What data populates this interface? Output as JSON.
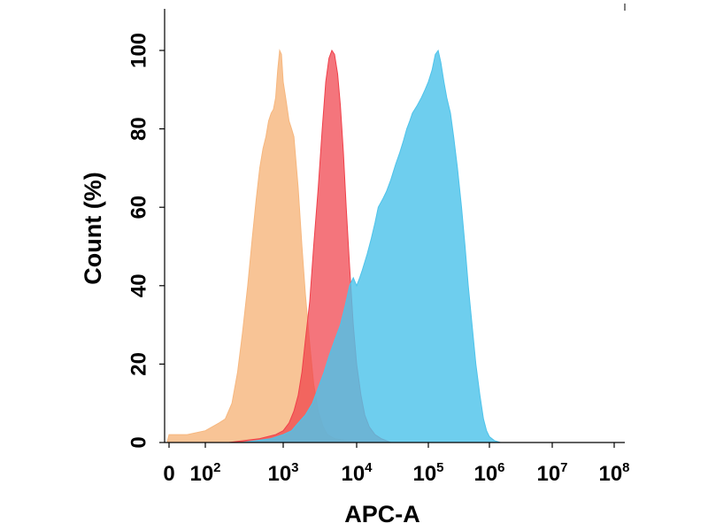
{
  "chart_data": {
    "type": "area",
    "title": "",
    "xlabel": "APC-A",
    "ylabel": "Count  (%)",
    "x_scale": "biexponential",
    "xlim": [
      -100,
      100000000
    ],
    "ylim": [
      0,
      108
    ],
    "x_ticks": [
      {
        "value": 0,
        "base": "0",
        "exp": ""
      },
      {
        "value": 100,
        "base": "10",
        "exp": "2"
      },
      {
        "value": 1000,
        "base": "10",
        "exp": "3"
      },
      {
        "value": 10000,
        "base": "10",
        "exp": "4"
      },
      {
        "value": 100000,
        "base": "10",
        "exp": "5"
      },
      {
        "value": 1000000,
        "base": "10",
        "exp": "6"
      },
      {
        "value": 10000000,
        "base": "10",
        "exp": "7"
      },
      {
        "value": 100000000,
        "base": "10",
        "exp": "8"
      }
    ],
    "y_ticks": [
      "0",
      "20",
      "40",
      "60",
      "80",
      "100"
    ],
    "y_tick_values": [
      0,
      20,
      40,
      60,
      80,
      100
    ],
    "grid": false,
    "legend": "none",
    "series": [
      {
        "color": "#f6b77f",
        "points": [
          [
            -100,
            0
          ],
          [
            0,
            2
          ],
          [
            50,
            2
          ],
          [
            100,
            3
          ],
          [
            150,
            5
          ],
          [
            180,
            6
          ],
          [
            220,
            10
          ],
          [
            260,
            18
          ],
          [
            300,
            28
          ],
          [
            350,
            40
          ],
          [
            400,
            52
          ],
          [
            450,
            62
          ],
          [
            500,
            70
          ],
          [
            550,
            75
          ],
          [
            600,
            78
          ],
          [
            650,
            82
          ],
          [
            700,
            84
          ],
          [
            750,
            85
          ],
          [
            800,
            88
          ],
          [
            850,
            95
          ],
          [
            900,
            100
          ],
          [
            950,
            99
          ],
          [
            1000,
            92
          ],
          [
            1100,
            87
          ],
          [
            1200,
            82
          ],
          [
            1300,
            80
          ],
          [
            1400,
            78
          ],
          [
            1600,
            65
          ],
          [
            1800,
            50
          ],
          [
            2000,
            38
          ],
          [
            2300,
            25
          ],
          [
            2600,
            15
          ],
          [
            3000,
            8
          ],
          [
            3500,
            4
          ],
          [
            4000,
            2
          ],
          [
            5000,
            1
          ],
          [
            7000,
            0.5
          ],
          [
            10000,
            0
          ]
        ]
      },
      {
        "color": "#f0404a",
        "points": [
          [
            200,
            0
          ],
          [
            500,
            1
          ],
          [
            800,
            2
          ],
          [
            1000,
            3
          ],
          [
            1200,
            5
          ],
          [
            1400,
            8
          ],
          [
            1600,
            12
          ],
          [
            1800,
            18
          ],
          [
            2000,
            26
          ],
          [
            2300,
            36
          ],
          [
            2600,
            50
          ],
          [
            3000,
            65
          ],
          [
            3400,
            80
          ],
          [
            3800,
            92
          ],
          [
            4200,
            98
          ],
          [
            4600,
            100
          ],
          [
            5000,
            99
          ],
          [
            5500,
            94
          ],
          [
            6000,
            86
          ],
          [
            6600,
            74
          ],
          [
            7200,
            60
          ],
          [
            8000,
            45
          ],
          [
            9000,
            30
          ],
          [
            10000,
            20
          ],
          [
            11500,
            12
          ],
          [
            13000,
            7
          ],
          [
            15000,
            4
          ],
          [
            18000,
            2
          ],
          [
            22000,
            1
          ],
          [
            30000,
            0
          ]
        ]
      },
      {
        "color": "#4ec3ea",
        "points": [
          [
            300,
            0
          ],
          [
            700,
            1
          ],
          [
            1000,
            2
          ],
          [
            1300,
            3
          ],
          [
            1600,
            5
          ],
          [
            2000,
            7
          ],
          [
            2500,
            10
          ],
          [
            3000,
            14
          ],
          [
            3600,
            18
          ],
          [
            4200,
            22
          ],
          [
            5000,
            26
          ],
          [
            6000,
            30
          ],
          [
            7000,
            35
          ],
          [
            8000,
            40
          ],
          [
            9000,
            42
          ],
          [
            10000,
            40
          ],
          [
            11000,
            42
          ],
          [
            12000,
            44
          ],
          [
            14000,
            48
          ],
          [
            16000,
            52
          ],
          [
            18000,
            56
          ],
          [
            20000,
            60
          ],
          [
            23000,
            62
          ],
          [
            26000,
            64
          ],
          [
            30000,
            67
          ],
          [
            35000,
            71
          ],
          [
            40000,
            74
          ],
          [
            45000,
            77
          ],
          [
            50000,
            80
          ],
          [
            55000,
            82
          ],
          [
            60000,
            84
          ],
          [
            70000,
            86
          ],
          [
            80000,
            88
          ],
          [
            90000,
            90
          ],
          [
            100000,
            92
          ],
          [
            115000,
            95
          ],
          [
            130000,
            99
          ],
          [
            145000,
            100
          ],
          [
            160000,
            97
          ],
          [
            180000,
            92
          ],
          [
            200000,
            88
          ],
          [
            230000,
            84
          ],
          [
            260000,
            78
          ],
          [
            300000,
            70
          ],
          [
            350000,
            60
          ],
          [
            400000,
            50
          ],
          [
            450000,
            40
          ],
          [
            520000,
            30
          ],
          [
            600000,
            20
          ],
          [
            700000,
            12
          ],
          [
            800000,
            6
          ],
          [
            900000,
            3
          ],
          [
            1000000,
            1.5
          ],
          [
            1200000,
            0.5
          ],
          [
            1500000,
            0
          ]
        ]
      }
    ]
  }
}
